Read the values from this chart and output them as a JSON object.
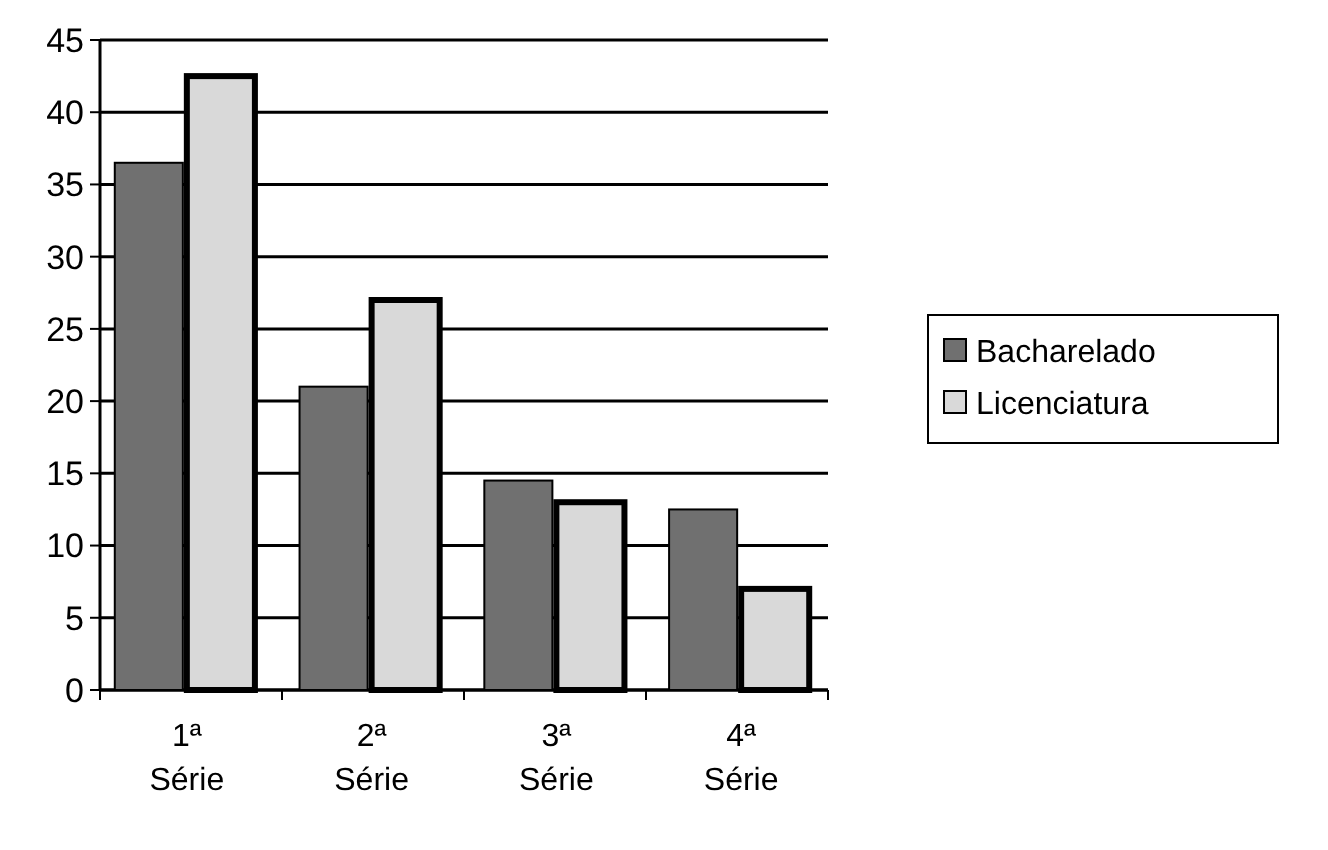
{
  "chart_data": {
    "type": "bar",
    "categories": [
      "1ª Série",
      "2ª Série",
      "3ª Série",
      "4ª Série"
    ],
    "series": [
      {
        "name": "Bacharelado",
        "color": "#707070",
        "values": [
          36.5,
          21,
          14.5,
          12.5
        ]
      },
      {
        "name": "Licenciatura",
        "color": "#d9d9d9",
        "values": [
          42.5,
          27,
          13,
          7
        ]
      }
    ],
    "ylim": [
      0,
      45
    ],
    "yticks": [
      0,
      5,
      10,
      15,
      20,
      25,
      30,
      35,
      40,
      45
    ],
    "grid": "y",
    "legend": "right"
  }
}
